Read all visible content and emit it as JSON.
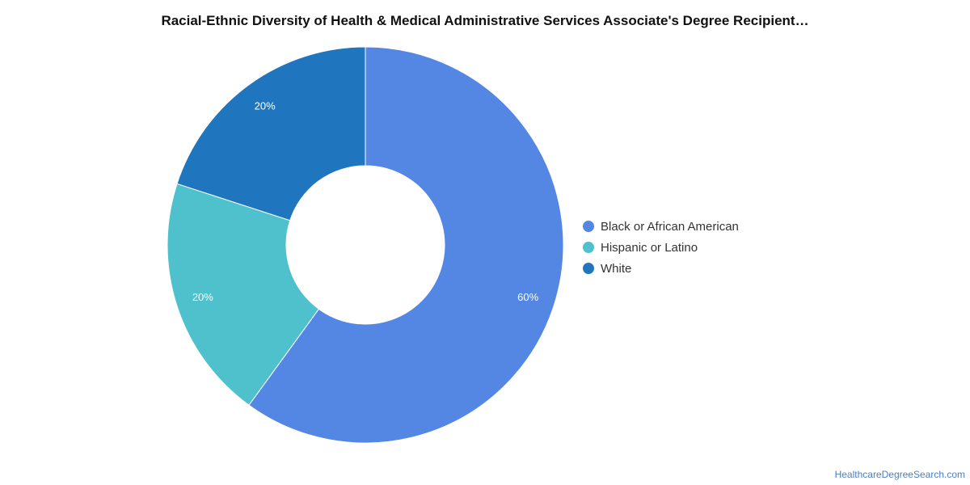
{
  "chart_data": {
    "type": "pie",
    "title": "Racial-Ethnic Diversity of Health & Medical Administrative Services Associate's Degree Recipient…",
    "donut": true,
    "legend_position": "right",
    "series": [
      {
        "name": "Black or African American",
        "value": 60,
        "label": "60%",
        "color": "#5486e3"
      },
      {
        "name": "Hispanic or Latino",
        "value": 20,
        "label": "20%",
        "color": "#4fc1cd"
      },
      {
        "name": "White",
        "value": 20,
        "label": "20%",
        "color": "#1f75be"
      }
    ]
  },
  "watermark": "HealthcareDegreeSearch.com"
}
